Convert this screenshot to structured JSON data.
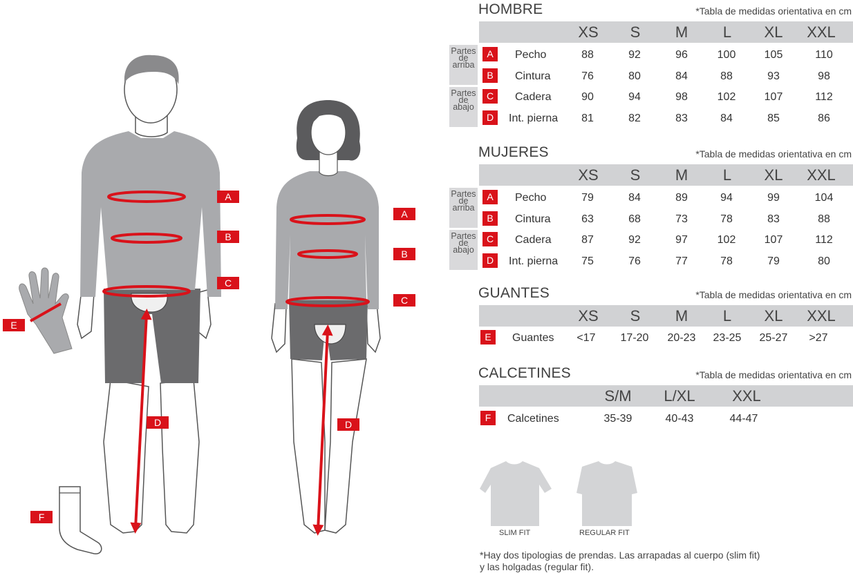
{
  "hombre": {
    "title": "HOMBRE",
    "note": "*Tabla de medidas orientativa en cm",
    "sizes": [
      "XS",
      "S",
      "M",
      "L",
      "XL",
      "XXL"
    ],
    "groups": [
      {
        "label": "Partes de arriba"
      },
      {
        "label": "Partes de abajo"
      }
    ],
    "rows": [
      {
        "letter": "A",
        "label": "Pecho",
        "values": [
          "88",
          "92",
          "96",
          "100",
          "105",
          "110"
        ]
      },
      {
        "letter": "B",
        "label": "Cintura",
        "values": [
          "76",
          "80",
          "84",
          "88",
          "93",
          "98"
        ]
      },
      {
        "letter": "C",
        "label": "Cadera",
        "values": [
          "90",
          "94",
          "98",
          "102",
          "107",
          "112"
        ]
      },
      {
        "letter": "D",
        "label": "Int. pierna",
        "values": [
          "81",
          "82",
          "83",
          "84",
          "85",
          "86"
        ]
      }
    ]
  },
  "mujeres": {
    "title": "MUJERES",
    "note": "*Tabla de medidas orientativa en cm",
    "sizes": [
      "XS",
      "S",
      "M",
      "L",
      "XL",
      "XXL"
    ],
    "groups": [
      {
        "label": "Partes de arriba"
      },
      {
        "label": "Partes de abajo"
      }
    ],
    "rows": [
      {
        "letter": "A",
        "label": "Pecho",
        "values": [
          "79",
          "84",
          "89",
          "94",
          "99",
          "104"
        ]
      },
      {
        "letter": "B",
        "label": "Cintura",
        "values": [
          "63",
          "68",
          "73",
          "78",
          "83",
          "88"
        ]
      },
      {
        "letter": "C",
        "label": "Cadera",
        "values": [
          "87",
          "92",
          "97",
          "102",
          "107",
          "112"
        ]
      },
      {
        "letter": "D",
        "label": "Int. pierna",
        "values": [
          "75",
          "76",
          "77",
          "78",
          "79",
          "80"
        ]
      }
    ]
  },
  "guantes": {
    "title": "GUANTES",
    "note": "*Tabla de medidas orientativa en cm",
    "sizes": [
      "XS",
      "S",
      "M",
      "L",
      "XL",
      "XXL"
    ],
    "rows": [
      {
        "letter": "E",
        "label": "Guantes",
        "values": [
          "<17",
          "17-20",
          "20-23",
          "23-25",
          "25-27",
          ">27"
        ]
      }
    ]
  },
  "calcetines": {
    "title": "CALCETINES",
    "note": "*Tabla de medidas orientativa en cm",
    "sizes": [
      "S/M",
      "L/XL",
      "XXL"
    ],
    "rows": [
      {
        "letter": "F",
        "label": "Calcetines",
        "values": [
          "35-39",
          "40-43",
          "44-47"
        ]
      }
    ]
  },
  "figure_tags": {
    "man": [
      "A",
      "B",
      "C",
      "D"
    ],
    "woman": [
      "A",
      "B",
      "C",
      "D"
    ],
    "glove": "E",
    "sock": "F"
  },
  "fits": {
    "slim": "SLIM FIT",
    "regular": "REGULAR FIT"
  },
  "footnote": {
    "line1": "*Hay dos tipologias de prendas. Las arrapadas al cuerpo (slim fit)",
    "line2": "y las holgadas (regular fit)."
  },
  "colors": {
    "accent": "#d9121a",
    "header_bar": "#d1d2d4",
    "garment": "#a9aaad",
    "shorts": "#6b6b6d"
  },
  "icons": [
    "man-figure-icon",
    "woman-figure-icon",
    "glove-icon",
    "sock-icon",
    "slim-fit-jersey-icon",
    "regular-fit-jersey-icon"
  ]
}
